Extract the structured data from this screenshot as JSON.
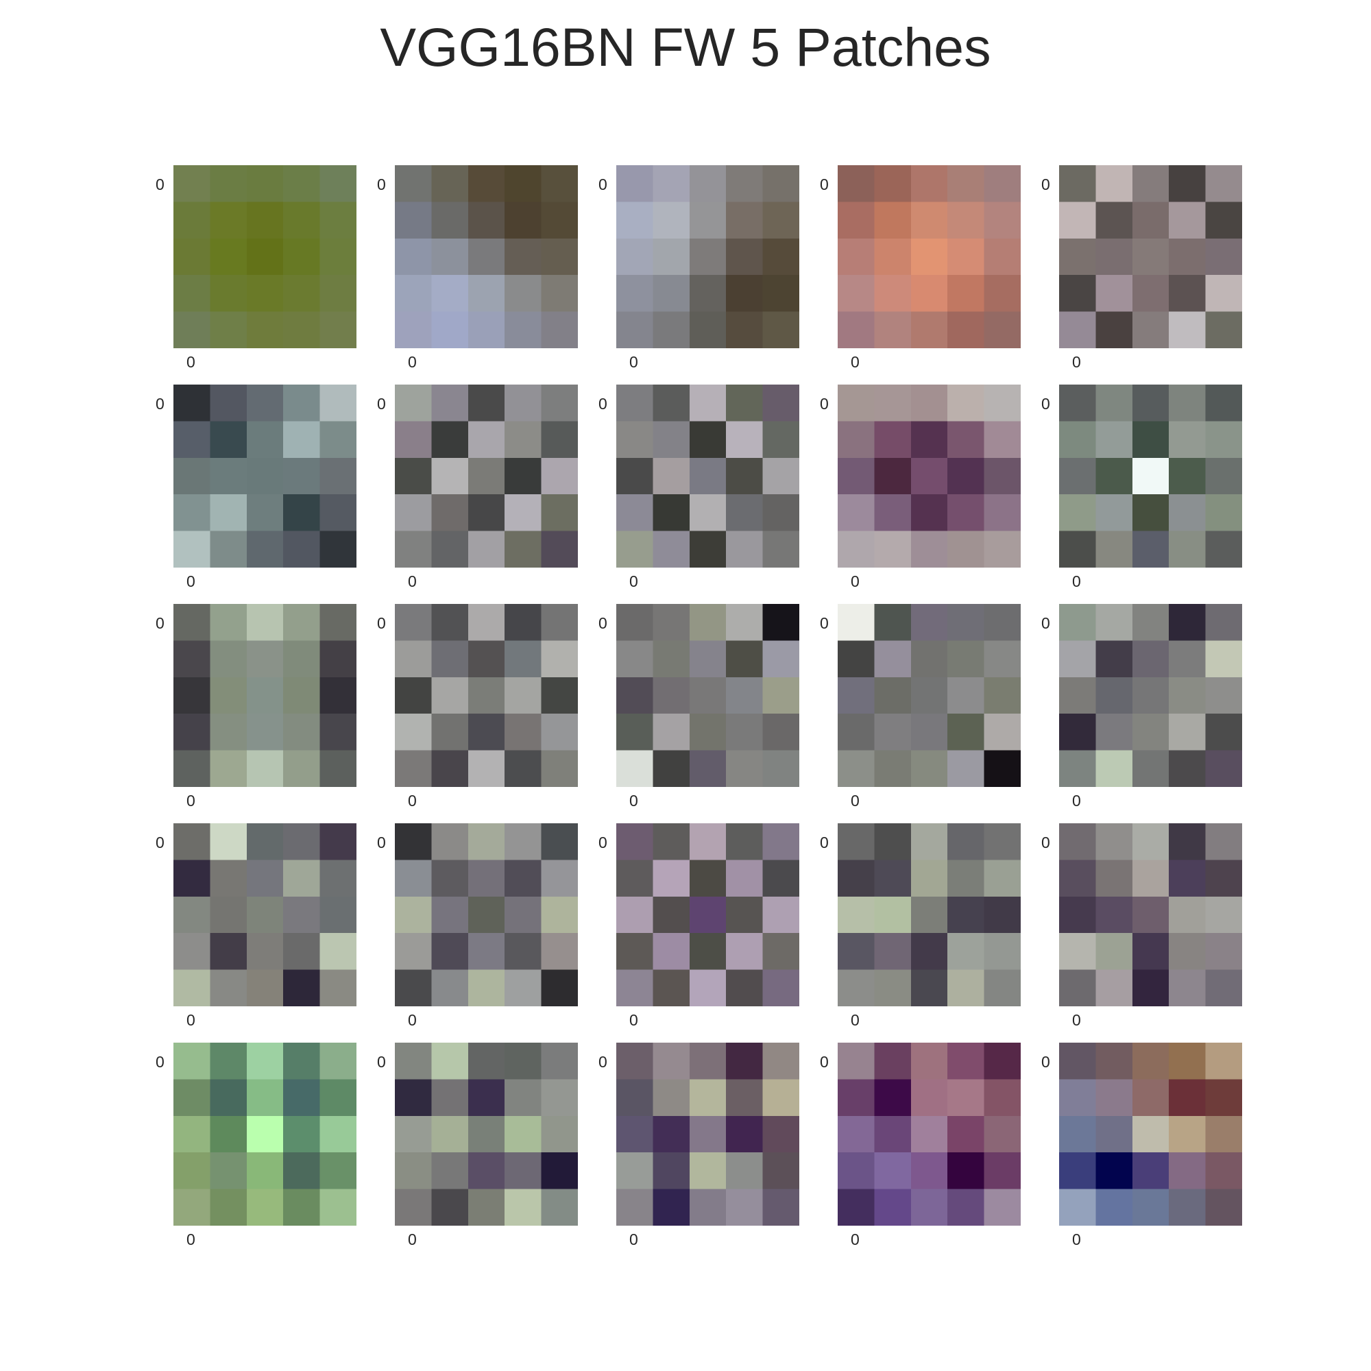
{
  "title": "VGG16BN FW 5 Patches",
  "chart_data": {
    "type": "heatmap",
    "title": "VGG16BN FW 5 Patches",
    "layout": "5x5 grid of 5x5-pixel RGB patches",
    "x_tick_label": "0",
    "y_tick_label": "0",
    "patches": [
      [
        [
          "#728050",
          "#6b7d44",
          "#6a7c40",
          "#6b7e48",
          "#6e805a"
        ],
        [
          "#6b7b3a",
          "#6b7a27",
          "#677520",
          "#697a2c",
          "#6c7e40"
        ],
        [
          "#6b7a34",
          "#687a20",
          "#637218",
          "#677924",
          "#6c7e3c"
        ],
        [
          "#6c7d45",
          "#6a7b2e",
          "#6a7a28",
          "#6b7b30",
          "#6e7d42"
        ],
        [
          "#6f7e58",
          "#6f7f48",
          "#6f7c3c",
          "#6f7c40",
          "#727e4c"
        ]
      ],
      [
        [
          "#717370",
          "#676456",
          "#574b38",
          "#4f452e",
          "#58503c"
        ],
        [
          "#767a86",
          "#6a6a68",
          "#5b534a",
          "#4d4130",
          "#544a36"
        ],
        [
          "#8e95a8",
          "#8c919c",
          "#7a7a7c",
          "#655e55",
          "#655e50"
        ],
        [
          "#9ca4ba",
          "#a4acc6",
          "#9ca3b0",
          "#8a8b8c",
          "#7e7b74"
        ],
        [
          "#9ea2bc",
          "#a0a8c8",
          "#9aa0b8",
          "#898c9a",
          "#828088"
        ]
      ],
      [
        [
          "#9898ac",
          "#a4a4b4",
          "#949398",
          "#7f7b78",
          "#76716a"
        ],
        [
          "#a9afc2",
          "#b0b4bd",
          "#959597",
          "#786e66",
          "#6e6556"
        ],
        [
          "#a2a6b6",
          "#a2a6ac",
          "#7e7b7a",
          "#5f554c",
          "#564b3a"
        ],
        [
          "#8e919e",
          "#878a92",
          "#64625e",
          "#4b4032",
          "#4d4432"
        ],
        [
          "#84858e",
          "#7a7a7c",
          "#5f5e58",
          "#564c3e",
          "#5f5846"
        ]
      ],
      [
        [
          "#8c6159",
          "#9b6558",
          "#ae766a",
          "#a97f76",
          "#9f7e7e"
        ],
        [
          "#a96d62",
          "#c0785e",
          "#cf8a70",
          "#c48978",
          "#b3847e"
        ],
        [
          "#b77e76",
          "#cc846c",
          "#e29472",
          "#d58c74",
          "#b57e74"
        ],
        [
          "#b78886",
          "#cd8a7a",
          "#d88a70",
          "#c17862",
          "#a66d61"
        ],
        [
          "#a17981",
          "#b1837e",
          "#b07a6e",
          "#a0685e",
          "#946a64"
        ]
      ],
      [
        [
          "#6c6a62",
          "#c1b5b4",
          "#857c7c",
          "#474140",
          "#958b8e"
        ],
        [
          "#c2b6b6",
          "#5c5452",
          "#7a6c6b",
          "#a5989c",
          "#4a4542"
        ],
        [
          "#7b716e",
          "#7a6e70",
          "#857a78",
          "#7c6e6e",
          "#7a6e74"
        ],
        [
          "#4a4544",
          "#a1919a",
          "#7e6e70",
          "#5c5252",
          "#c0b6b6"
        ],
        [
          "#958a96",
          "#4a4140",
          "#857c7c",
          "#c0bcbf",
          "#6c6c62"
        ]
      ],
      [
        [
          "#2e3136",
          "#535761",
          "#636b72",
          "#7a8b8c",
          "#b0bbbc"
        ],
        [
          "#575e69",
          "#394a4f",
          "#6b7c7c",
          "#9fb2b3",
          "#7c8c8a"
        ],
        [
          "#6a7776",
          "#6b7c7c",
          "#697a7a",
          "#6b7a7c",
          "#6a7074"
        ],
        [
          "#819291",
          "#a1b4b2",
          "#6e7e7e",
          "#344448",
          "#555a62"
        ],
        [
          "#b1c1bf",
          "#7e8c8a",
          "#5f686e",
          "#525761",
          "#30353a"
        ]
      ],
      [
        [
          "#9ea39d",
          "#8a8690",
          "#4a4a4a",
          "#929196",
          "#7d7e7e"
        ],
        [
          "#8a7f8a",
          "#3a3c3b",
          "#a9a6ac",
          "#8c8c88",
          "#575a59"
        ],
        [
          "#4a4c48",
          "#b5b4b5",
          "#7b7b77",
          "#393b3a",
          "#aca6ae"
        ],
        [
          "#9c9ca0",
          "#6f6b6a",
          "#474748",
          "#b4b1b8",
          "#6c6e61"
        ],
        [
          "#808180",
          "#636466",
          "#a2a0a4",
          "#6d6e62",
          "#534b58"
        ]
      ],
      [
        [
          "#7d7d80",
          "#5b5c5b",
          "#b6b0b7",
          "#626659",
          "#675c6a"
        ],
        [
          "#898886",
          "#838288",
          "#393a35",
          "#b8b2bb",
          "#646862"
        ],
        [
          "#4a4a4a",
          "#a59ea0",
          "#7a7a84",
          "#4c4c46",
          "#a5a3a6"
        ],
        [
          "#8c8a96",
          "#373934",
          "#b2b0b2",
          "#6b6c70",
          "#646362"
        ],
        [
          "#979d8e",
          "#8f8c98",
          "#3d3d37",
          "#9a989d",
          "#777776"
        ]
      ],
      [
        [
          "#a59794",
          "#a69696",
          "#a39091",
          "#bbb0ac",
          "#b7b3b2"
        ],
        [
          "#8a727f",
          "#764c68",
          "#553250",
          "#7a566e",
          "#a18a96"
        ],
        [
          "#735a74",
          "#4c283f",
          "#754d6d",
          "#533252",
          "#6c5569"
        ],
        [
          "#9c8a9c",
          "#7a5e7a",
          "#553250",
          "#754f6d",
          "#8c7388"
        ],
        [
          "#afa7ac",
          "#b4aaac",
          "#9e8e97",
          "#a09292",
          "#a89c9c"
        ]
      ],
      [
        [
          "#5b5e5e",
          "#7f8780",
          "#575c5d",
          "#7e847e",
          "#535958"
        ],
        [
          "#7d8a7f",
          "#939c98",
          "#3e4e44",
          "#939a92",
          "#8a948a"
        ],
        [
          "#6b6f70",
          "#4b5a4b",
          "#f1f9f7",
          "#4c5c4c",
          "#6a706d"
        ],
        [
          "#8f9b89",
          "#929a9a",
          "#464f3e",
          "#8b9092",
          "#84907f"
        ],
        [
          "#4c4e4b",
          "#878880",
          "#5b5e6a",
          "#888e84",
          "#5b5d5c"
        ]
      ],
      [
        [
          "#656862",
          "#93a18d",
          "#b7c4b0",
          "#939f8c",
          "#686a64"
        ],
        [
          "#4a474c",
          "#838e7f",
          "#8a9289",
          "#808b7b",
          "#444046"
        ],
        [
          "#37363a",
          "#838e79",
          "#84928a",
          "#7f8a76",
          "#333038"
        ],
        [
          "#45424a",
          "#858f81",
          "#86928c",
          "#838c80",
          "#48464c"
        ],
        [
          "#5e625f",
          "#9da891",
          "#b6c5b2",
          "#939e8b",
          "#5c605d"
        ]
      ],
      [
        [
          "#7a7a7c",
          "#525254",
          "#acaaaa",
          "#46464a",
          "#747474"
        ],
        [
          "#9c9c9a",
          "#6e6e74",
          "#545152",
          "#72787c",
          "#b1b1ad"
        ],
        [
          "#434442",
          "#a6a6a4",
          "#7b7d78",
          "#a4a5a2",
          "#444643"
        ],
        [
          "#b1b3b0",
          "#727270",
          "#4c4b52",
          "#787473",
          "#959698"
        ],
        [
          "#7b7978",
          "#49454b",
          "#b3b2b3",
          "#4c4d4f",
          "#7f807a"
        ]
      ],
      [
        [
          "#6b6a6a",
          "#777675",
          "#939685",
          "#adadab",
          "#16141a"
        ],
        [
          "#888888",
          "#787a73",
          "#85838c",
          "#4e4e46",
          "#9b9aa6"
        ],
        [
          "#524c56",
          "#726e72",
          "#797878",
          "#83858a",
          "#9b9e8a"
        ],
        [
          "#595e58",
          "#a5a2a4",
          "#73746c",
          "#7a7a7a",
          "#6a6868"
        ],
        [
          "#dadfd9",
          "#414140",
          "#625c6a",
          "#868683",
          "#808381"
        ]
      ],
      [
        [
          "#edeee8",
          "#4f5550",
          "#726b7a",
          "#6f6e76",
          "#6d6d6f"
        ],
        [
          "#444443",
          "#958f9c",
          "#72726f",
          "#787b73",
          "#878886"
        ],
        [
          "#716f7c",
          "#6c6d67",
          "#737474",
          "#8c8c8d",
          "#7a7d70"
        ],
        [
          "#6a6a6a",
          "#7f7e80",
          "#79787c",
          "#5c6253",
          "#aeaaa8"
        ],
        [
          "#8c8f89",
          "#7a7c74",
          "#868a7f",
          "#9b9aa2",
          "#151116"
        ]
      ],
      [
        [
          "#8e9a8e",
          "#a5a8a3",
          "#828380",
          "#2e2738",
          "#6e6b71"
        ],
        [
          "#a4a4a8",
          "#433d49",
          "#6b6670",
          "#7c7c7c",
          "#c3c8b5"
        ],
        [
          "#7c7b78",
          "#66676e",
          "#767677",
          "#8a8c85",
          "#8e8e8c"
        ],
        [
          "#322a3a",
          "#7b7a7e",
          "#83847f",
          "#a9a9a4",
          "#4c4c4c"
        ],
        [
          "#7d8480",
          "#bccab4",
          "#737574",
          "#4c4a4c",
          "#594e5f"
        ]
      ],
      [
        [
          "#6d6d69",
          "#cdd8c5",
          "#636a6b",
          "#6b6b70",
          "#443a4b"
        ],
        [
          "#332b40",
          "#787773",
          "#75767d",
          "#9fa798",
          "#6d7071"
        ],
        [
          "#838881",
          "#757571",
          "#7e847a",
          "#7a797e",
          "#6a6f71"
        ],
        [
          "#8d8d8b",
          "#433d48",
          "#7e7d79",
          "#6a6a6a",
          "#bbc6b1"
        ],
        [
          "#b0baa3",
          "#888985",
          "#858279",
          "#2d2739",
          "#8a8a83"
        ]
      ],
      [
        [
          "#333336",
          "#8b8a88",
          "#a4aa9a",
          "#949494",
          "#4a4e51"
        ],
        [
          "#8a8e94",
          "#5d5b5f",
          "#747079",
          "#514d57",
          "#959599"
        ],
        [
          "#acb39e",
          "#77747e",
          "#5f6259",
          "#75727a",
          "#aeb49c"
        ],
        [
          "#9b9b98",
          "#4f4a56",
          "#7c7a84",
          "#59585c",
          "#968f8e"
        ],
        [
          "#4a4a4c",
          "#888a8c",
          "#adb59e",
          "#9ea0a0",
          "#2d2c2f"
        ]
      ],
      [
        [
          "#6d5c70",
          "#5e5c5b",
          "#b3a3b1",
          "#5d5d5c",
          "#82788a"
        ],
        [
          "#5e5b5c",
          "#b5a4b8",
          "#4c4a44",
          "#a191a6",
          "#4b4a4d"
        ],
        [
          "#ad9eb0",
          "#534e4e",
          "#5e4470",
          "#575452",
          "#aea0b2"
        ],
        [
          "#5d5956",
          "#9d8ca4",
          "#4d4e47",
          "#ae9fb2",
          "#6d6a66"
        ],
        [
          "#8d8594",
          "#5b5552",
          "#b3a5ba",
          "#514c4e",
          "#776a80"
        ]
      ],
      [
        [
          "#686868",
          "#4e4e4e",
          "#a4a89e",
          "#66666a",
          "#727272"
        ],
        [
          "#45404a",
          "#4e4a56",
          "#a2a794",
          "#7b7e78",
          "#9aa094"
        ],
        [
          "#b6bfa8",
          "#b2c0a2",
          "#7c7e78",
          "#46414f",
          "#413a48"
        ],
        [
          "#595662",
          "#706674",
          "#433a4a",
          "#9da29b",
          "#949893"
        ],
        [
          "#8c8d8a",
          "#8a8c84",
          "#4a4850",
          "#adb09f",
          "#848683"
        ]
      ],
      [
        [
          "#716b70",
          "#908e8c",
          "#aaaca6",
          "#403946",
          "#827d80"
        ],
        [
          "#594e5e",
          "#7a7474",
          "#aaa39e",
          "#4c3f5a",
          "#4e434e"
        ],
        [
          "#463a4e",
          "#5a4c62",
          "#6e5e6c",
          "#a1a09a",
          "#a6a6a2"
        ],
        [
          "#b5b5ae",
          "#9ca294",
          "#453850",
          "#888482",
          "#8a8288"
        ],
        [
          "#6d6a6e",
          "#a69ea2",
          "#33253e",
          "#8d868e",
          "#716c76"
        ]
      ],
      [
        [
          "#96bc8e",
          "#5e8868",
          "#9dd1a2",
          "#567e68",
          "#8bae8b"
        ],
        [
          "#6e8c65",
          "#486a5e",
          "#86bc86",
          "#476a68",
          "#5e8a66"
        ],
        [
          "#93b57f",
          "#5e8a5c",
          "#baffae",
          "#5c8e6c",
          "#98ca98"
        ],
        [
          "#84a06a",
          "#769270",
          "#89b878",
          "#4c6a5c",
          "#699168"
        ],
        [
          "#93a87c",
          "#749060",
          "#97ba7c",
          "#6a8c60",
          "#9cc090"
        ]
      ],
      [
        [
          "#828680",
          "#b6c7aa",
          "#636564",
          "#5f6460",
          "#7b7c7c"
        ],
        [
          "#302a40",
          "#747274",
          "#3b2f4e",
          "#818480",
          "#949792"
        ],
        [
          "#979c94",
          "#a5b096",
          "#798078",
          "#a8bc98",
          "#91968c"
        ],
        [
          "#8a8e84",
          "#787878",
          "#5a4e66",
          "#6d6874",
          "#221a38"
        ],
        [
          "#7a7878",
          "#4a484c",
          "#7b7e74",
          "#bac6aa",
          "#838c86"
        ]
      ],
      [
        [
          "#6c5f6a",
          "#958a90",
          "#7d7078",
          "#432842",
          "#918884"
        ],
        [
          "#5a5564",
          "#8e8a86",
          "#b4b69c",
          "#6b5f64",
          "#b6b095"
        ],
        [
          "#5e5570",
          "#432e56",
          "#84788a",
          "#412550",
          "#614a5b"
        ],
        [
          "#989c98",
          "#504660",
          "#b1b79d",
          "#8c8e8c",
          "#5c5058"
        ],
        [
          "#88848a",
          "#312450",
          "#837c8a",
          "#958e9c",
          "#655a6e"
        ]
      ],
      [
        [
          "#978390",
          "#6a4060",
          "#9e727e",
          "#804c6c",
          "#562848"
        ],
        [
          "#683f69",
          "#3d0a48",
          "#a07084",
          "#a67888",
          "#845466"
        ],
        [
          "#836896",
          "#6a4678",
          "#a0809c",
          "#7a4468",
          "#8b6676"
        ],
        [
          "#6b5488",
          "#8068a0",
          "#7e588e",
          "#34043e",
          "#6b3c66"
        ],
        [
          "#442e5e",
          "#64488a",
          "#7d6698",
          "#654a7c",
          "#9c8aa0"
        ]
      ],
      [
        [
          "#625664",
          "#725c60",
          "#8c6c5c",
          "#927050",
          "#b49c80"
        ],
        [
          "#807e98",
          "#8b7a8c",
          "#8e6a68",
          "#6b3038",
          "#6e3c3a"
        ],
        [
          "#6c7898",
          "#707088",
          "#bfbcac",
          "#b8a486",
          "#9a7e6a"
        ],
        [
          "#3a3e7c",
          "#02044e",
          "#4a3e78",
          "#846a84",
          "#7a5864"
        ],
        [
          "#94a2bc",
          "#6474a0",
          "#6a7898",
          "#6a6a7e",
          "#645460"
        ]
      ]
    ]
  }
}
